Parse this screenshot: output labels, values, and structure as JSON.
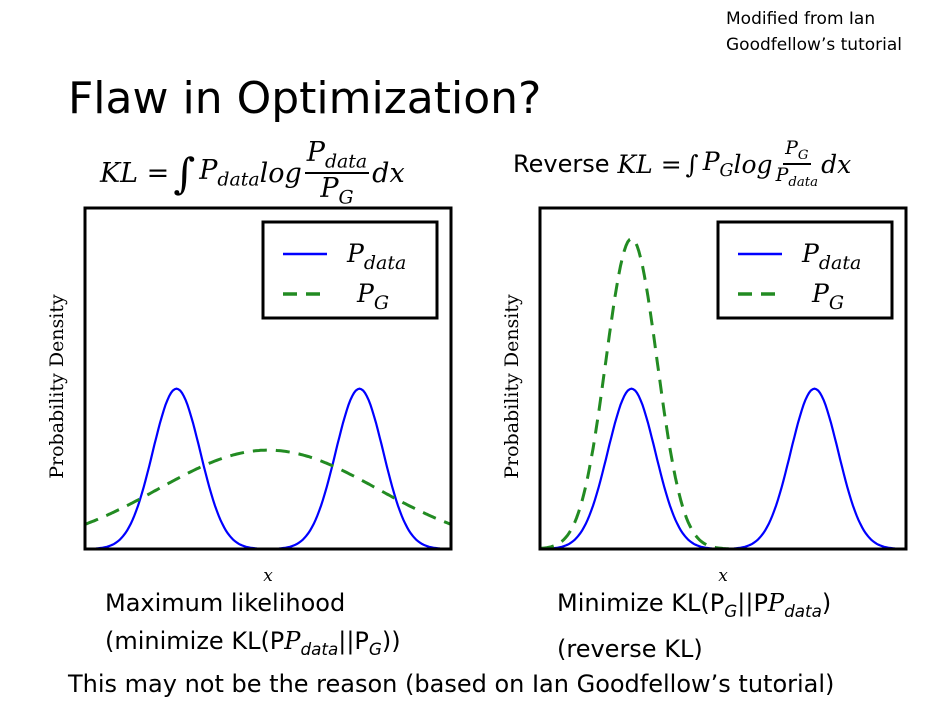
{
  "credit": [
    "Modified from Ian",
    "Goodfellow’s tutorial"
  ],
  "title": "Flaw in Optimization?",
  "equations": {
    "kl": {
      "lhs": "KL =",
      "integral": "∫",
      "p": "P",
      "p_sub": "data",
      "log": "log",
      "num": "P",
      "num_sub": "data",
      "den": "P",
      "den_sub": "G",
      "dx": "dx"
    },
    "reverse": {
      "prefix": "Reverse",
      "lhs": "KL =",
      "integral": "∫",
      "p": "P",
      "p_sub": "G",
      "log": "log",
      "num": "P",
      "num_sub": "G",
      "den": "P",
      "den_sub": "data",
      "dx": "dx"
    }
  },
  "captions": {
    "left": [
      "Maximum likelihood",
      "(minimize KL(P",
      "data",
      "||P",
      "G",
      "))"
    ],
    "right": [
      "Minimize KL(P",
      "G",
      "||P",
      "data",
      ")",
      "(reverse KL)"
    ]
  },
  "bottom": "This may not be the reason (based on Ian Goodfellow’s tutorial)",
  "colors": {
    "data": "#0000ff",
    "g": "#228b22"
  },
  "chart_data": [
    {
      "type": "line",
      "title": "Maximum likelihood",
      "xlabel": "x",
      "ylabel": "Probability Density",
      "xlim": [
        -5,
        5
      ],
      "ylim": [
        0,
        1
      ],
      "legend": "top-right",
      "grid": false,
      "series": [
        {
          "name": "P_data",
          "style": "solid",
          "components": [
            {
              "mean": -2.5,
              "sigma": 0.65,
              "peak": 0.47
            },
            {
              "mean": 2.5,
              "sigma": 0.65,
              "peak": 0.47
            }
          ]
        },
        {
          "name": "P_G",
          "style": "dashed",
          "components": [
            {
              "mean": 0.0,
              "sigma": 3.0,
              "peak": 0.29
            }
          ]
        }
      ]
    },
    {
      "type": "line",
      "title": "Minimize reverse KL",
      "xlabel": "x",
      "ylabel": "Probability Density",
      "xlim": [
        -5,
        5
      ],
      "ylim": [
        0,
        1
      ],
      "legend": "top-right",
      "grid": false,
      "series": [
        {
          "name": "P_data",
          "style": "solid",
          "components": [
            {
              "mean": -2.5,
              "sigma": 0.65,
              "peak": 0.47
            },
            {
              "mean": 2.5,
              "sigma": 0.65,
              "peak": 0.47
            }
          ]
        },
        {
          "name": "P_G",
          "style": "dashed",
          "components": [
            {
              "mean": -2.5,
              "sigma": 0.7,
              "peak": 0.91
            }
          ]
        }
      ]
    }
  ],
  "legend": {
    "data": "P",
    "data_sub": "data",
    "g": "P",
    "g_sub": "G"
  }
}
